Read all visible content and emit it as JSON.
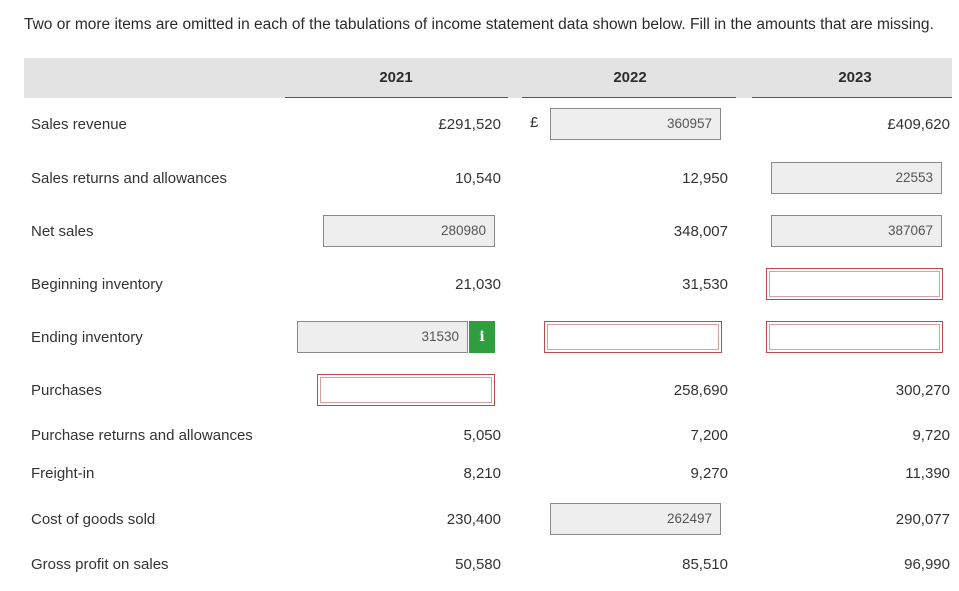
{
  "instructions": "Two or more items are omitted in each of the tabulations of income statement data shown below. Fill in the amounts that are missing.",
  "years": [
    "2021",
    "2022",
    "2023"
  ],
  "currency_symbol": "£",
  "info_icon_glyph": "i",
  "colors": {
    "error_border": "#b94a48",
    "info_green": "#2e9e3e",
    "header_band": "#e3e3e3"
  },
  "rows": {
    "sales_revenue": {
      "label": "Sales revenue",
      "y2021": "£291,520",
      "y2022_input": "360957",
      "y2023": "£409,620"
    },
    "sales_returns": {
      "label": "Sales returns and allowances",
      "y2021": "10,540",
      "y2022": "12,950",
      "y2023_input": "22553"
    },
    "net_sales": {
      "label": "Net sales",
      "y2021_input": "280980",
      "y2022": "348,007",
      "y2023_input": "387067"
    },
    "beginning_inventory": {
      "label": "Beginning inventory",
      "y2021": "21,030",
      "y2022": "31,530",
      "y2023_input": ""
    },
    "ending_inventory": {
      "label": "Ending inventory",
      "y2021_input": "31530",
      "y2022_input": "",
      "y2023_input": ""
    },
    "purchases": {
      "label": "Purchases",
      "y2021_input": "",
      "y2022": "258,690",
      "y2023": "300,270"
    },
    "purchase_returns": {
      "label": "Purchase returns and allowances",
      "y2021": "5,050",
      "y2022": "7,200",
      "y2023": "9,720"
    },
    "freight_in": {
      "label": "Freight-in",
      "y2021": "8,210",
      "y2022": "9,270",
      "y2023": "11,390"
    },
    "cogs": {
      "label": "Cost of goods sold",
      "y2021": "230,400",
      "y2022_input": "262497",
      "y2023": "290,077"
    },
    "gross_profit": {
      "label": "Gross profit on sales",
      "y2021": "50,580",
      "y2022": "85,510",
      "y2023": "96,990"
    }
  }
}
